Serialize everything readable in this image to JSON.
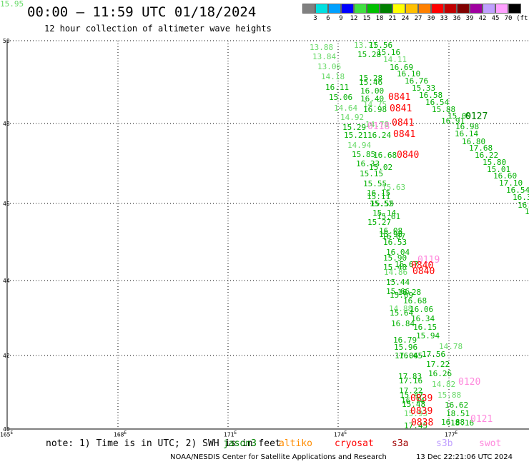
{
  "header": {
    "title": "00:00 — 11:59 UTC 01/18/2024",
    "subtitle": "12 hour collection of altimeter wave heights"
  },
  "colorbar": {
    "colors": [
      "#808080",
      "#00e0e0",
      "#00a0ff",
      "#0000ff",
      "#40e040",
      "#00c000",
      "#008000",
      "#ffff00",
      "#ffc000",
      "#ff8000",
      "#ff0000",
      "#c00000",
      "#800000",
      "#a000a0",
      "#c0a0ff",
      "#ffa0ff",
      "#000000"
    ],
    "labels": [
      "3",
      "6",
      "9",
      "12",
      "15",
      "18",
      "21",
      "24",
      "27",
      "30",
      "33",
      "36",
      "39",
      "42",
      "45",
      "70",
      "(ft)"
    ]
  },
  "map": {
    "lat_labels": [
      "50",
      "48",
      "46",
      "44",
      "42",
      "40"
    ],
    "lon_labels": [
      "165",
      "168",
      "171",
      "174",
      "177"
    ],
    "lon_prefix": "E",
    "colors": {
      "dark_green": "#008000",
      "mid_green": "#00b000",
      "light_green": "#66d966",
      "red": "#ff0000",
      "pink": "#ff88dd",
      "grid": "#000000"
    }
  },
  "observations": [
    {
      "v": "13.88",
      "c": "light_green"
    },
    {
      "v": "13.71",
      "c": "light_green"
    },
    {
      "v": "15.56",
      "c": "mid_green"
    },
    {
      "v": "15.28",
      "c": "mid_green"
    },
    {
      "v": "15.16",
      "c": "mid_green"
    },
    {
      "v": "13.84",
      "c": "light_green"
    },
    {
      "v": "14.11",
      "c": "light_green"
    },
    {
      "v": "13.06",
      "c": "light_green"
    },
    {
      "v": "16.69",
      "c": "mid_green"
    },
    {
      "v": "16.10",
      "c": "mid_green"
    },
    {
      "v": "14.18",
      "c": "light_green"
    },
    {
      "v": "15.28",
      "c": "mid_green"
    },
    {
      "v": "16.76",
      "c": "mid_green"
    },
    {
      "v": "15.46",
      "c": "mid_green"
    },
    {
      "v": "16.11",
      "c": "mid_green"
    },
    {
      "v": "15.33",
      "c": "mid_green"
    },
    {
      "v": "16.00",
      "c": "mid_green"
    },
    {
      "v": "16.58",
      "c": "mid_green"
    },
    {
      "v": "15.06",
      "c": "mid_green"
    },
    {
      "v": "16.40",
      "c": "mid_green"
    },
    {
      "v": "16.54",
      "c": "mid_green"
    },
    {
      "v": "14.64",
      "c": "light_green"
    },
    {
      "v": "14.75",
      "c": "light_green"
    },
    {
      "v": "16.98",
      "c": "mid_green"
    },
    {
      "v": "15.88",
      "c": "mid_green"
    },
    {
      "v": "14.92",
      "c": "light_green"
    },
    {
      "v": "15.09",
      "c": "mid_green"
    },
    {
      "v": "16.91",
      "c": "mid_green"
    },
    {
      "v": "14.78",
      "c": "light_green"
    },
    {
      "v": "15.29",
      "c": "mid_green"
    },
    {
      "v": "16.98",
      "c": "mid_green"
    },
    {
      "v": "15.21",
      "c": "mid_green"
    },
    {
      "v": "16.24",
      "c": "mid_green"
    },
    {
      "v": "16.14",
      "c": "mid_green"
    },
    {
      "v": "16.80",
      "c": "mid_green"
    },
    {
      "v": "14.94",
      "c": "light_green"
    },
    {
      "v": "17.68",
      "c": "mid_green"
    },
    {
      "v": "15.85",
      "c": "mid_green"
    },
    {
      "v": "16.68",
      "c": "mid_green"
    },
    {
      "v": "16.22",
      "c": "mid_green"
    },
    {
      "v": "16.33",
      "c": "mid_green"
    },
    {
      "v": "15.80",
      "c": "mid_green"
    },
    {
      "v": "15.02",
      "c": "mid_green"
    },
    {
      "v": "15.01",
      "c": "mid_green"
    },
    {
      "v": "15.15",
      "c": "mid_green"
    },
    {
      "v": "16.60",
      "c": "mid_green"
    },
    {
      "v": "15.55",
      "c": "mid_green"
    },
    {
      "v": "17.10",
      "c": "mid_green"
    },
    {
      "v": "15.63",
      "c": "light_green"
    },
    {
      "v": "16.54",
      "c": "mid_green"
    },
    {
      "v": "16.15",
      "c": "mid_green"
    },
    {
      "v": "16.3",
      "c": "mid_green"
    },
    {
      "v": "15.11",
      "c": "mid_green"
    },
    {
      "v": "15.52",
      "c": "mid_green"
    },
    {
      "v": "16.",
      "c": "mid_green"
    },
    {
      "v": "15.55",
      "c": "mid_green"
    },
    {
      "v": "1",
      "c": "mid_green"
    },
    {
      "v": "15.14",
      "c": "mid_green"
    },
    {
      "v": "15.61",
      "c": "mid_green"
    },
    {
      "v": "15.27",
      "c": "mid_green"
    },
    {
      "v": "16.08",
      "c": "mid_green"
    },
    {
      "v": "15.98",
      "c": "mid_green"
    },
    {
      "v": "16.07",
      "c": "mid_green"
    },
    {
      "v": "16.53",
      "c": "mid_green"
    },
    {
      "v": "16.04",
      "c": "mid_green"
    },
    {
      "v": "15.90",
      "c": "mid_green"
    },
    {
      "v": "15.67",
      "c": "mid_green"
    },
    {
      "v": "15.48",
      "c": "mid_green"
    },
    {
      "v": "14.86",
      "c": "light_green"
    },
    {
      "v": "15.44",
      "c": "mid_green"
    },
    {
      "v": "15.66",
      "c": "mid_green"
    },
    {
      "v": "16.28",
      "c": "mid_green"
    },
    {
      "v": "15.09",
      "c": "mid_green"
    },
    {
      "v": "16.68",
      "c": "mid_green"
    },
    {
      "v": "14.88",
      "c": "light_green"
    },
    {
      "v": "16.06",
      "c": "mid_green"
    },
    {
      "v": "15.64",
      "c": "mid_green"
    },
    {
      "v": "16.34",
      "c": "mid_green"
    },
    {
      "v": "16.84",
      "c": "mid_green"
    },
    {
      "v": "16.15",
      "c": "mid_green"
    },
    {
      "v": "15.94",
      "c": "mid_green"
    },
    {
      "v": "16.79",
      "c": "mid_green"
    },
    {
      "v": "15.96",
      "c": "mid_green"
    },
    {
      "v": "14.78",
      "c": "light_green"
    },
    {
      "v": "17.06",
      "c": "mid_green"
    },
    {
      "v": "17.56",
      "c": "mid_green"
    },
    {
      "v": "16.45",
      "c": "mid_green"
    },
    {
      "v": "17.22",
      "c": "mid_green"
    },
    {
      "v": "16.26",
      "c": "mid_green"
    },
    {
      "v": "17.83",
      "c": "mid_green"
    },
    {
      "v": "17.16",
      "c": "mid_green"
    },
    {
      "v": "14.82",
      "c": "light_green"
    },
    {
      "v": "17.22",
      "c": "mid_green"
    },
    {
      "v": "15.47",
      "c": "mid_green"
    },
    {
      "v": "15.88",
      "c": "light_green"
    },
    {
      "v": "16.74",
      "c": "mid_green"
    },
    {
      "v": "15.48",
      "c": "mid_green"
    },
    {
      "v": "16.62",
      "c": "mid_green"
    },
    {
      "v": "15.93",
      "c": "light_green"
    },
    {
      "v": "18.51",
      "c": "mid_green"
    },
    {
      "v": "16.88",
      "c": "mid_green"
    },
    {
      "v": "17.45",
      "c": "mid_green"
    },
    {
      "v": "18.16",
      "c": "mid_green"
    },
    {
      "v": "15.95",
      "c": "light_green"
    }
  ],
  "pass_times": [
    {
      "t": "0841",
      "c": "red"
    },
    {
      "t": "0841",
      "c": "red"
    },
    {
      "t": "0127",
      "c": "dark_green"
    },
    {
      "t": "0118",
      "c": "pink"
    },
    {
      "t": "0841",
      "c": "red"
    },
    {
      "t": "0841",
      "c": "red"
    },
    {
      "t": "0840",
      "c": "red"
    },
    {
      "t": "0119",
      "c": "pink"
    },
    {
      "t": "0840",
      "c": "red"
    },
    {
      "t": "0840",
      "c": "red"
    },
    {
      "t": "0120",
      "c": "pink"
    },
    {
      "t": "0839",
      "c": "red"
    },
    {
      "t": "0839",
      "c": "red"
    },
    {
      "t": "0121",
      "c": "pink"
    },
    {
      "t": "0838",
      "c": "red"
    }
  ],
  "footer": {
    "note": "note: 1) Time is in UTC; 2) SWH is in feet",
    "legend": [
      {
        "name": "jason3",
        "color": "#008000"
      },
      {
        "name": "altiko",
        "color": "#ff8c00"
      },
      {
        "name": "cryosat",
        "color": "#ff0000"
      },
      {
        "name": "s3a",
        "color": "#a00000"
      },
      {
        "name": "s3b",
        "color": "#c0a0ff"
      },
      {
        "name": "swot",
        "color": "#ff88dd"
      }
    ],
    "credit": "NOAA/NESDIS Center for Satellite Applications and Research",
    "timestamp": "13 Dec 22:21:06 UTC 2024"
  }
}
